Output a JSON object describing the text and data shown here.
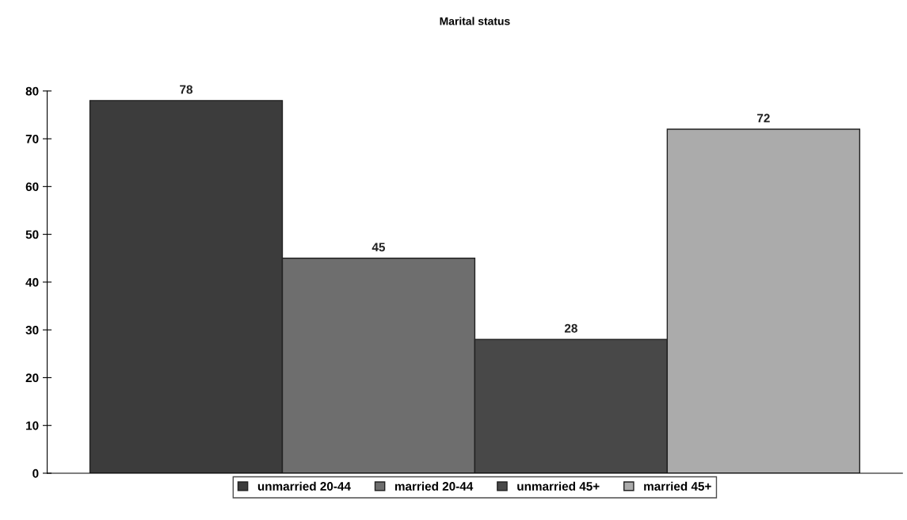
{
  "chart_data": {
    "type": "bar",
    "title": "Marital status",
    "categories": [
      null
    ],
    "series": [
      {
        "name": "unmarried 20-44",
        "color": "#3c3c3c",
        "values": [
          78
        ]
      },
      {
        "name": "married 20-44",
        "color": "#6e6e6e",
        "values": [
          45
        ]
      },
      {
        "name": "unmarried 45+",
        "color": "#484848",
        "values": [
          28
        ]
      },
      {
        "name": "married 45+",
        "color": "#ababab",
        "values": [
          72
        ]
      }
    ],
    "ylim": [
      0,
      80
    ],
    "yticks": [
      0,
      10,
      20,
      30,
      40,
      50,
      60,
      70,
      80
    ],
    "data_labels": true,
    "grid": false,
    "legend": "bottom"
  }
}
